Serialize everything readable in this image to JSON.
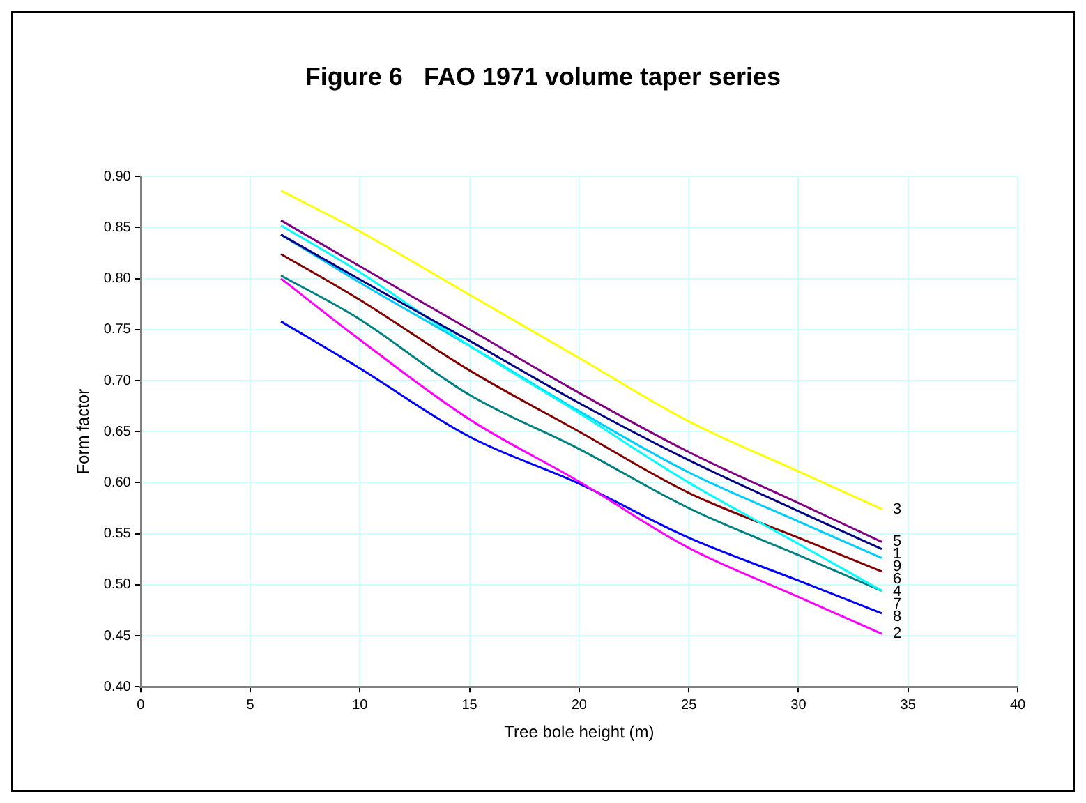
{
  "chart_data": {
    "type": "line",
    "title": "Figure 6   FAO 1971 volume taper series",
    "xlabel": "Tree bole height (m)",
    "ylabel": "Form factor",
    "x": [
      6.4,
      10,
      15,
      20,
      25,
      30,
      33.8
    ],
    "series": [
      {
        "name": "1",
        "color": "#000080",
        "values": [
          0.843,
          0.799,
          0.739,
          0.678,
          0.622,
          0.572,
          0.535
        ]
      },
      {
        "name": "2",
        "color": "#ff00ff",
        "values": [
          0.8,
          0.74,
          0.662,
          0.601,
          0.536,
          0.488,
          0.452
        ]
      },
      {
        "name": "3",
        "color": "#ffff00",
        "values": [
          0.886,
          0.846,
          0.784,
          0.722,
          0.66,
          0.611,
          0.574
        ]
      },
      {
        "name": "4",
        "color": "#00ffff",
        "values": [
          0.852,
          0.806,
          0.734,
          0.668,
          0.6,
          0.54,
          0.494
        ]
      },
      {
        "name": "5",
        "color": "#800080",
        "values": [
          0.857,
          0.812,
          0.75,
          0.688,
          0.63,
          0.58,
          0.542
        ]
      },
      {
        "name": "6",
        "color": "#800000",
        "values": [
          0.824,
          0.779,
          0.71,
          0.65,
          0.59,
          0.546,
          0.513
        ]
      },
      {
        "name": "7",
        "color": "#008080",
        "values": [
          0.803,
          0.76,
          0.686,
          0.633,
          0.575,
          0.529,
          0.494
        ]
      },
      {
        "name": "8",
        "color": "#0000ff",
        "values": [
          0.758,
          0.712,
          0.645,
          0.599,
          0.546,
          0.504,
          0.472
        ]
      },
      {
        "name": "9",
        "color": "#00ccff",
        "values": [
          0.843,
          0.796,
          0.734,
          0.67,
          0.61,
          0.562,
          0.526
        ]
      }
    ],
    "xlim": [
      0,
      40
    ],
    "xticks": [
      0,
      5,
      10,
      15,
      20,
      25,
      30,
      35,
      40
    ],
    "ylim": [
      0.4,
      0.9
    ],
    "yticks": [
      {
        "value": 0.4,
        "label": "0.40"
      },
      {
        "value": 0.45,
        "label": "0.45"
      },
      {
        "value": 0.5,
        "label": "0.50"
      },
      {
        "value": 0.55,
        "label": "0.55"
      },
      {
        "value": 0.6,
        "label": "0.60"
      },
      {
        "value": 0.65,
        "label": "0.65"
      },
      {
        "value": 0.7,
        "label": "0.70"
      },
      {
        "value": 0.75,
        "label": "0.75"
      },
      {
        "value": 0.8,
        "label": "0.80"
      },
      {
        "value": 0.85,
        "label": "0.85"
      },
      {
        "value": 0.9,
        "label": "0.90"
      }
    ],
    "grid": true,
    "legend": false,
    "marker": "none",
    "line_style": "solid"
  }
}
